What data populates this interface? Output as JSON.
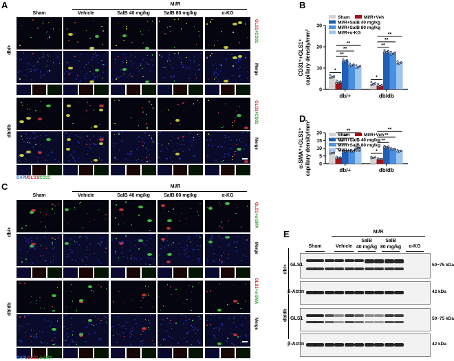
{
  "panels": {
    "A": {
      "letter": "A",
      "group_header": "MI/R",
      "columns": [
        "Sham",
        "Vehicle",
        "SalB 40 mg/kg",
        "SalB 80 mg/kg",
        "α-KG"
      ],
      "rows": [
        "db/+",
        "db/db"
      ],
      "channel_label": {
        "red": "GLS1",
        "plus": "+",
        "green": "CD31"
      },
      "merge_label": "Merge",
      "stain_legend": {
        "blue": "DAPI",
        "sep1": "/",
        "red": "GLS1",
        "sep2": "/",
        "green": "CD31"
      },
      "scale_bar": "20 μm"
    },
    "C": {
      "letter": "C",
      "group_header": "MI/R",
      "columns": [
        "Sham",
        "Vehicle",
        "SalB 40 mg/kg",
        "SalB 80 mg/kg",
        "α-KG"
      ],
      "rows": [
        "db/+",
        "db/db"
      ],
      "channel_label": {
        "red": "GLS1",
        "plus": "+",
        "green": "α-SMA"
      },
      "merge_label": "Merge",
      "stain_legend": {
        "blue": "DAPI",
        "sep1": "/",
        "red": "GLS1",
        "sep2": "/",
        "green": "α-SMA"
      },
      "scale_bar": "20 μm"
    },
    "B": {
      "letter": "B"
    },
    "D": {
      "letter": "D"
    },
    "E": {
      "letter": "E",
      "group_header": "MI/R",
      "lanes": [
        "Sham",
        "Vehicle",
        "SalB\n40 mg/kg",
        "SalB\n80 mg/kg",
        "α-KG"
      ],
      "lane_line1": [
        "Sham",
        "Vehicle",
        "SalB",
        "SalB",
        "α-KG"
      ],
      "lane_line2": [
        "",
        "",
        "40 mg/kg",
        "80 mg/kg",
        ""
      ],
      "rows": [
        "db/+",
        "db/db"
      ],
      "blots": [
        {
          "label": "GLS1",
          "kda": "50~75 kDa"
        },
        {
          "label": "β-Actin",
          "kda": "42 kDa"
        },
        {
          "label": "GLS1",
          "kda": "50~75 kDa"
        },
        {
          "label": "β-Actin",
          "kda": "42 kDa"
        }
      ]
    }
  },
  "colors": {
    "sham": "#d3d3d3",
    "veh": "#a50f15",
    "salb40": "#1f5fb4",
    "salb80": "#4a90e2",
    "akg": "#9ec5f0",
    "red_text": "#e3242b",
    "green_text": "#2ca02c",
    "blue_text": "#3b78d8"
  },
  "chart_data": [
    {
      "panel": "B",
      "type": "bar",
      "title": "",
      "ylabel": "CD31⁺+GLS1⁺ capillary density/mm²",
      "xlabel": "",
      "categories": [
        "db/+",
        "db/db"
      ],
      "ylim": [
        0,
        30
      ],
      "yticks": [
        0,
        10,
        20,
        30
      ],
      "legend_position": "top",
      "series": [
        {
          "name": "Sham",
          "values": [
            6.0,
            2.7
          ]
        },
        {
          "name": "MI/R+Veh",
          "values": [
            3.5,
            1.8
          ]
        },
        {
          "name": "MI/R+SalB 40 mg/kg",
          "values": [
            13.5,
            17.8
          ]
        },
        {
          "name": "MI/R+SalB 80 mg/kg",
          "values": [
            11.5,
            17.0
          ]
        },
        {
          "name": "MI/R+α-KG",
          "values": [
            10.7,
            12.5
          ]
        }
      ],
      "annotations": [
        "*",
        "**",
        "**",
        "**",
        "*",
        "**",
        "**",
        "**"
      ]
    },
    {
      "panel": "D",
      "type": "bar",
      "title": "",
      "ylabel": "α-SMA⁺+GLS1⁺ capillary density/mm²",
      "xlabel": "",
      "categories": [
        "db/+",
        "db/db"
      ],
      "ylim": [
        0,
        20
      ],
      "yticks": [
        0,
        5,
        10,
        15,
        20
      ],
      "legend_position": "top",
      "series": [
        {
          "name": "Sham",
          "values": [
            7.0,
            4.0
          ]
        },
        {
          "name": "MI/R+Veh",
          "values": [
            4.0,
            3.0
          ]
        },
        {
          "name": "MI/R+SalB 40 mg/kg",
          "values": [
            8.0,
            11.0
          ]
        },
        {
          "name": "MI/R+SalB 80 mg/kg",
          "values": [
            8.0,
            9.5
          ]
        },
        {
          "name": "MI/R+α-KG",
          "values": [
            10.2,
            8.2
          ]
        }
      ],
      "annotations": [
        "*",
        "**",
        "**",
        "**",
        "*",
        "**",
        "**",
        "**"
      ]
    }
  ],
  "legend": {
    "sham": "Sham",
    "veh": "MI/R+Veh",
    "salb40": "MI/R+SalB 40 mg/kg",
    "salb80": "MI/R+SalB 80 mg/kg",
    "akg": "MI/R+α-KG"
  },
  "axes": {
    "B": {
      "ylabel_top": "CD31⁺+GLS1⁺",
      "ylabel_bottom": "capillary density/mm²",
      "ticks": [
        "0",
        "10",
        "20",
        "30"
      ],
      "x": [
        "db/+",
        "db/db"
      ]
    },
    "D": {
      "ylabel_top": "α-SMA⁺+GLS1⁺",
      "ylabel_bottom": "capillary density/mm²",
      "ticks": [
        "0",
        "5",
        "10",
        "15",
        "20"
      ],
      "x": [
        "db/+",
        "db/db"
      ]
    }
  },
  "sig": {
    "one": "*",
    "two": "**"
  }
}
